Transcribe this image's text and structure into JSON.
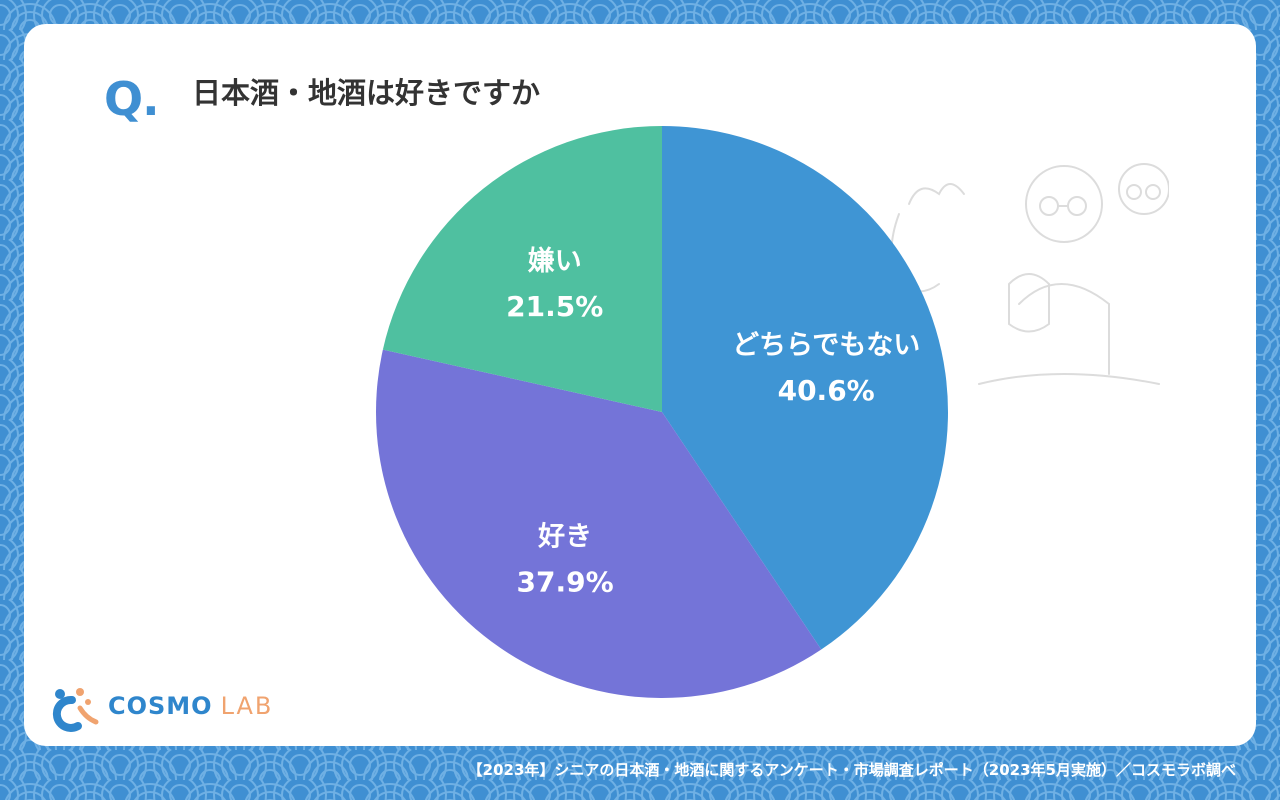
{
  "question": {
    "mark": "Q.",
    "title": "日本酒・地酒は好きですか"
  },
  "chart_data": {
    "type": "pie",
    "start_angle_deg": 0,
    "direction": "clockwise",
    "slices": [
      {
        "label": "どちらでもない",
        "value": 40.6,
        "value_text": "40.6%",
        "color": "#3f95d4"
      },
      {
        "label": "好き",
        "value": 37.9,
        "value_text": "37.9%",
        "color": "#7474d8"
      },
      {
        "label": "嫌い",
        "value": 21.5,
        "value_text": "21.5%",
        "color": "#4fc0a0"
      }
    ]
  },
  "logo": {
    "main": "COSMO",
    "sub": "LAB"
  },
  "footer": {
    "caption": "【2023年】シニアの日本酒・地酒に関するアンケート・市場調査レポート（2023年5月実施）／コスモラボ調べ"
  },
  "colors": {
    "background": "#3f8fd2",
    "card": "#ffffff",
    "accent": "#3f8fd2",
    "logo_accent": "#f0a36f"
  }
}
